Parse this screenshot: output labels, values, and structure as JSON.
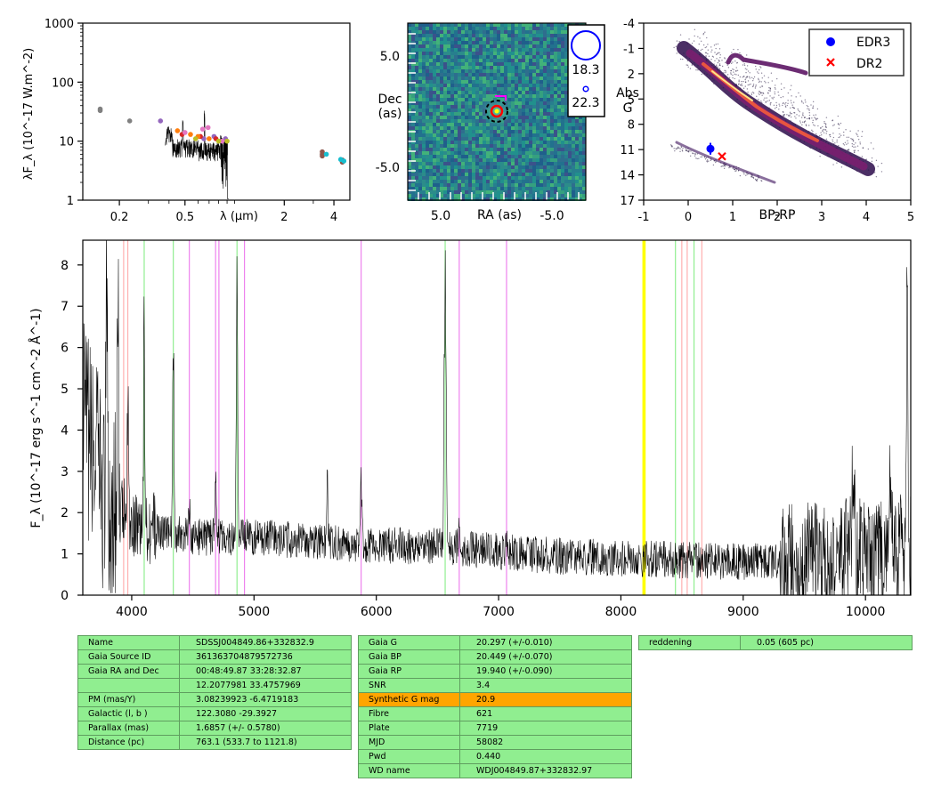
{
  "sed_panel": {
    "ylabel": "λF_λ (10^-17 W.m^-2)",
    "yticks": [
      "1",
      "10",
      "100",
      "1000"
    ],
    "xticks": [
      "0.2",
      "0.5",
      "2",
      "4"
    ],
    "xlabel": "λ (μm)",
    "photometry_colors": [
      "#808080",
      "#9467bd",
      "#d62728",
      "#ff7f0e",
      "#e377c2",
      "#bcbd22",
      "#8c564b",
      "#17becf"
    ]
  },
  "image_panel": {
    "ylabel_line1": "Dec",
    "ylabel_line2": "(as)",
    "xlabel": "RA (as)",
    "xticks": [
      "5.0",
      "-5.0"
    ],
    "yticks": [
      "5.0",
      "-5.0"
    ],
    "legend_mag_bright": "18.3",
    "legend_mag_faint": "22.3"
  },
  "cmd_panel": {
    "ylabel_line1": "Abs",
    "ylabel_line2": "G",
    "xlabel": "BP-RP",
    "xticks": [
      "-1",
      "0",
      "1",
      "2",
      "3",
      "4",
      "5"
    ],
    "yticks": [
      "-4",
      "-1",
      "2",
      "5",
      "8",
      "11",
      "14",
      "17"
    ],
    "legend": [
      {
        "label": "EDR3",
        "color": "#0000ff",
        "marker": "circle"
      },
      {
        "label": "DR2",
        "color": "#ff0000",
        "marker": "x"
      }
    ]
  },
  "chart_data": [
    {
      "type": "scatter",
      "panel": "SED photometry",
      "xscale": "log",
      "yscale": "log",
      "xlim": [
        0.12,
        5.0
      ],
      "ylim": [
        1,
        1000
      ],
      "series": [
        {
          "color": "#808080",
          "x": [
            0.153,
            0.153,
            0.231
          ],
          "y": [
            33,
            35,
            22
          ]
        },
        {
          "color": "#9467bd",
          "x": [
            0.355,
            0.65,
            0.75,
            0.88
          ],
          "y": [
            22,
            11,
            12,
            11
          ]
        },
        {
          "color": "#d62728",
          "x": [
            0.48,
            0.62,
            0.77
          ],
          "y": [
            13,
            12,
            11
          ]
        },
        {
          "color": "#ff7f0e",
          "x": [
            0.45,
            0.54,
            0.6,
            0.7
          ],
          "y": [
            15,
            13,
            12,
            11
          ]
        },
        {
          "color": "#e377c2",
          "x": [
            0.5,
            0.64,
            0.69,
            0.84
          ],
          "y": [
            14,
            16,
            17,
            10
          ]
        },
        {
          "color": "#bcbd22",
          "x": [
            0.58,
            0.8,
            0.9
          ],
          "y": [
            11,
            10,
            10
          ]
        },
        {
          "color": "#8c564b",
          "x": [
            3.4,
            3.4,
            3.4,
            4.5,
            4.5
          ],
          "y": [
            5.6,
            6.0,
            6.6,
            4.8,
            4.4
          ]
        },
        {
          "color": "#17becf",
          "x": [
            3.6,
            4.4,
            4.6
          ],
          "y": [
            6.0,
            4.9,
            4.6
          ]
        }
      ]
    },
    {
      "type": "scatter",
      "panel": "colour-magnitude diagram",
      "xlim": [
        -1,
        5
      ],
      "ylim": [
        17,
        -4
      ],
      "series": [
        {
          "name": "EDR3",
          "x": [
            0.5
          ],
          "y": [
            10.9
          ],
          "yerr": [
            0.7
          ]
        },
        {
          "name": "DR2",
          "x": [
            0.76
          ],
          "y": [
            11.8
          ]
        }
      ]
    },
    {
      "type": "line",
      "panel": "optical spectrum",
      "xlabel": "",
      "ylabel": "F_λ (10^-17 erg s^-1 cm^-2 Å^-1)",
      "xlim": [
        3600,
        10370
      ],
      "ylim": [
        0,
        8.6
      ],
      "xticks": [
        "4000",
        "5000",
        "6000",
        "7000",
        "8000",
        "9000",
        "10000"
      ],
      "yticks": [
        "0",
        "1",
        "2",
        "3",
        "4",
        "5",
        "6",
        "7",
        "8"
      ],
      "continuum": [
        [
          3600,
          4.2
        ],
        [
          3800,
          2.3
        ],
        [
          4000,
          1.8
        ],
        [
          4300,
          1.5
        ],
        [
          4600,
          1.4
        ],
        [
          5000,
          1.4
        ],
        [
          5500,
          1.3
        ],
        [
          6000,
          1.2
        ],
        [
          6500,
          1.2
        ],
        [
          7000,
          1.05
        ],
        [
          7500,
          0.95
        ],
        [
          8000,
          0.9
        ],
        [
          8500,
          0.85
        ],
        [
          9000,
          0.8
        ],
        [
          9500,
          0.85
        ],
        [
          10000,
          1.0
        ],
        [
          10370,
          1.1
        ]
      ],
      "emission_lines": [
        [
          3797,
          8.3,
          6
        ],
        [
          3889,
          6.5,
          6
        ],
        [
          3970,
          5.0,
          6
        ],
        [
          4102,
          6.6,
          5
        ],
        [
          4340,
          6.4,
          5
        ],
        [
          4471,
          2.2,
          5
        ],
        [
          4686,
          2.5,
          7
        ],
        [
          4861,
          7.5,
          6
        ],
        [
          5600,
          2.8,
          4
        ],
        [
          5876,
          3.0,
          6
        ],
        [
          6563,
          7.8,
          8
        ],
        [
          6678,
          1.7,
          6
        ],
        [
          7065,
          1.6,
          6
        ],
        [
          9900,
          3.5,
          10
        ],
        [
          10200,
          3.0,
          10
        ],
        [
          10340,
          7.7,
          6
        ]
      ],
      "marker_lines": [
        {
          "x": 3934,
          "color": "#ffb0b0"
        },
        {
          "x": 3968,
          "color": "#ffb0b0"
        },
        {
          "x": 4102,
          "color": "#90ee90"
        },
        {
          "x": 4340,
          "color": "#90ee90"
        },
        {
          "x": 4471,
          "color": "#ee82ee"
        },
        {
          "x": 4686,
          "color": "#ee82ee"
        },
        {
          "x": 4713,
          "color": "#ee82ee"
        },
        {
          "x": 4861,
          "color": "#90ee90"
        },
        {
          "x": 4922,
          "color": "#ee82ee"
        },
        {
          "x": 5876,
          "color": "#ee82ee"
        },
        {
          "x": 6563,
          "color": "#90ee90"
        },
        {
          "x": 6678,
          "color": "#ee82ee"
        },
        {
          "x": 7065,
          "color": "#ee82ee"
        },
        {
          "x": 8183,
          "color": "#ffff00"
        },
        {
          "x": 8195,
          "color": "#ffff00"
        },
        {
          "x": 8446,
          "color": "#90ee90"
        },
        {
          "x": 8498,
          "color": "#ffb0b0"
        },
        {
          "x": 8542,
          "color": "#ffb0b0"
        },
        {
          "x": 8598,
          "color": "#90ee90"
        },
        {
          "x": 8662,
          "color": "#ffb0b0"
        }
      ]
    }
  ],
  "table_left": [
    [
      "Name",
      "SDSSJ004849.86+332832.9"
    ],
    [
      "Gaia Source ID",
      "361363704879572736"
    ],
    [
      "Gaia RA and Dec",
      "00:48:49.87    33:28:32.87"
    ],
    [
      "",
      "12.2077981    33.4757969"
    ],
    [
      "PM (mas/Y)",
      "3.08239923    -6.4719183"
    ],
    [
      "Galactic (l, b )",
      "122.3080    -29.3927"
    ],
    [
      "Parallax (mas)",
      "1.6857 (+/- 0.5780)"
    ],
    [
      "Distance (pc)",
      "763.1 (533.7 to 1121.8)"
    ]
  ],
  "table_mid": [
    [
      "Gaia G",
      "20.297 (+/-0.010)"
    ],
    [
      "Gaia BP",
      "20.449 (+/-0.070)"
    ],
    [
      "Gaia RP",
      "19.940 (+/-0.090)"
    ],
    [
      "SNR",
      "3.4"
    ],
    [
      "Synthetic G mag",
      "20.9"
    ],
    [
      "Fibre",
      "621"
    ],
    [
      "Plate",
      "7719"
    ],
    [
      "MJD",
      "58082"
    ],
    [
      "Pwd",
      "0.440"
    ],
    [
      "WD name",
      "WDJ004849.87+332832.97"
    ]
  ],
  "table_right": [
    [
      "reddening",
      "0.05 (605 pc)"
    ]
  ],
  "colors": {
    "table_bg": "#90ee90",
    "highlight": "#ffa500",
    "spectrum": "#000000"
  }
}
